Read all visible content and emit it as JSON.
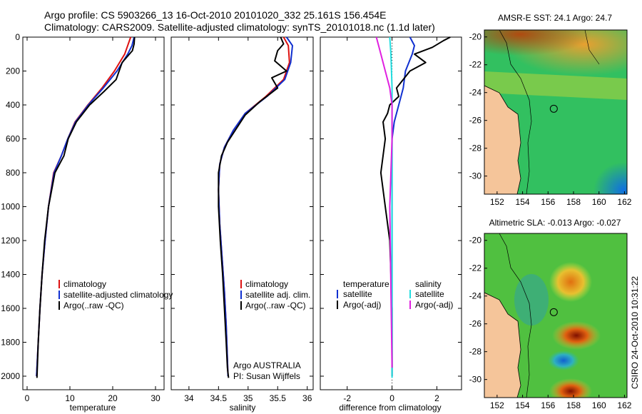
{
  "header": {
    "line1": "Argo profile: CS 5903266_13 16-Oct-2010 20101020_332 25.161S 156.454E",
    "line2": "Climatology: CARS2009. Satellite-adjusted climatology: synTS_20101018.nc (1.1d later)"
  },
  "side_label": "CSIRO 24-Oct-2010 10:31:22",
  "colors": {
    "clim": "#dd1111",
    "sat": "#1030d0",
    "argo": "#000000",
    "sal_sat": "#22dde0",
    "sal_argo": "#e020e0"
  },
  "chart_data": [
    {
      "type": "line",
      "id": "temperature",
      "xlabel": "temperature",
      "ylim": [
        0,
        2080
      ],
      "xlim": [
        -1,
        32
      ],
      "xticks": [
        0,
        10,
        20,
        30
      ],
      "yticks": [
        0,
        200,
        400,
        600,
        800,
        1000,
        1200,
        1400,
        1600,
        1800,
        2000
      ],
      "legend": [
        "climatology",
        "satellite-adjusted climatology",
        "Argo(..raw -QC)"
      ],
      "series": [
        {
          "name": "climatology",
          "color": "clim",
          "x": [
            24.2,
            23.5,
            22.8,
            20.4,
            17.5,
            14.2,
            11.2,
            9.5,
            8.0,
            6.2,
            5.0,
            4.2,
            3.5,
            3.0,
            2.6,
            2.2
          ],
          "y": [
            0,
            50,
            100,
            200,
            300,
            400,
            500,
            600,
            700,
            800,
            1000,
            1200,
            1400,
            1600,
            1800,
            2000
          ]
        },
        {
          "name": "satellite",
          "color": "sat",
          "x": [
            25.0,
            24.5,
            23.5,
            21.0,
            17.8,
            14.3,
            11.3,
            9.5,
            8.0,
            6.3,
            5.0,
            4.2,
            3.5,
            3.0,
            2.6,
            2.2
          ],
          "y": [
            0,
            50,
            100,
            200,
            300,
            400,
            500,
            600,
            700,
            800,
            1000,
            1200,
            1400,
            1600,
            1800,
            2000
          ]
        },
        {
          "name": "argo",
          "color": "argo",
          "x": [
            25.1,
            25.0,
            24.6,
            22.2,
            20.8,
            18.0,
            14.6,
            11.5,
            9.6,
            8.6,
            6.5,
            5.0,
            4.1,
            3.5,
            3.0,
            2.6,
            2.3
          ],
          "y": [
            0,
            40,
            80,
            150,
            250,
            320,
            400,
            500,
            600,
            700,
            800,
            1000,
            1200,
            1400,
            1600,
            1800,
            2010
          ]
        }
      ]
    },
    {
      "type": "line",
      "id": "salinity",
      "xlabel": "salinity",
      "ylim": [
        0,
        2080
      ],
      "xlim": [
        33.7,
        36.1
      ],
      "xticks": [
        34,
        34.5,
        35,
        35.5,
        36
      ],
      "legend": [
        "climatology",
        "satellite adj. clim.",
        "Argo(..raw -QC)"
      ],
      "series": [
        {
          "name": "climatology",
          "color": "clim",
          "x": [
            35.6,
            35.68,
            35.7,
            35.6,
            35.3,
            34.95,
            34.75,
            34.6,
            34.52,
            34.5,
            34.52,
            34.56,
            34.6,
            34.63,
            34.65,
            34.66
          ],
          "y": [
            0,
            50,
            150,
            250,
            350,
            450,
            550,
            650,
            750,
            900,
            1100,
            1300,
            1500,
            1700,
            1900,
            2000
          ]
        },
        {
          "name": "satellite",
          "color": "sat",
          "x": [
            35.65,
            35.75,
            35.72,
            35.62,
            35.32,
            34.95,
            34.75,
            34.6,
            34.52,
            34.5,
            34.52,
            34.56,
            34.6,
            34.63,
            34.65,
            34.66
          ],
          "y": [
            0,
            50,
            150,
            250,
            350,
            450,
            550,
            650,
            750,
            900,
            1100,
            1300,
            1500,
            1700,
            1900,
            2000
          ]
        },
        {
          "name": "argo",
          "color": "argo",
          "x": [
            35.55,
            35.6,
            35.5,
            35.45,
            35.65,
            35.4,
            35.5,
            35.2,
            34.95,
            34.8,
            34.65,
            34.55,
            34.5,
            34.5,
            34.53,
            34.57,
            34.6,
            34.63,
            34.65,
            34.67
          ],
          "y": [
            0,
            40,
            80,
            140,
            200,
            240,
            300,
            380,
            460,
            540,
            620,
            700,
            800,
            1000,
            1200,
            1400,
            1600,
            1800,
            1950,
            2010
          ]
        }
      ],
      "annotation": {
        "line1": "Argo AUSTRALIA",
        "line2": "PI: Susan Wijffels"
      }
    },
    {
      "type": "line",
      "id": "difference",
      "xlabel": "difference from climatology",
      "ylim": [
        0,
        2080
      ],
      "xlim": [
        -3.2,
        3.1
      ],
      "xticks": [
        -2,
        0,
        2
      ],
      "legend_temp_header": "temperature",
      "legend_sal_header": "salinity",
      "legend": [
        "satellite",
        "Argo(-adj)",
        "satellite",
        "Argo(-adj)"
      ],
      "series": [
        {
          "name": "temperature satellite",
          "color": "sat",
          "x": [
            0.8,
            1.0,
            0.9,
            0.6,
            0.5,
            0.3,
            0.1,
            0.0,
            0.0,
            0.0,
            0.0,
            0.0
          ],
          "y": [
            0,
            50,
            100,
            200,
            300,
            400,
            500,
            600,
            800,
            1200,
            1600,
            2000
          ]
        },
        {
          "name": "temperature argo",
          "color": "argo",
          "x": [
            2.6,
            2.3,
            1.8,
            1.0,
            1.5,
            0.8,
            0.5,
            0.2,
            0.3,
            -0.1,
            -0.2,
            -0.4,
            -0.3,
            -0.5,
            -0.3,
            -0.1,
            0.0,
            0.0
          ],
          "y": [
            0,
            20,
            60,
            100,
            150,
            200,
            250,
            300,
            350,
            400,
            450,
            500,
            600,
            800,
            1000,
            1200,
            1600,
            2000
          ]
        },
        {
          "name": "salinity satellite",
          "color": "sal_sat",
          "x": [
            -0.1,
            -0.05,
            0.0,
            0.0,
            0.0,
            0.0,
            0.0
          ],
          "y": [
            0,
            100,
            300,
            600,
            1000,
            1500,
            2010
          ]
        },
        {
          "name": "salinity argo",
          "color": "sal_argo",
          "x": [
            -0.7,
            -0.5,
            -0.3,
            -0.1,
            0.0,
            0.0,
            -0.1,
            0.0
          ],
          "y": [
            0,
            100,
            200,
            300,
            400,
            600,
            1000,
            1950
          ]
        }
      ]
    }
  ],
  "maps": [
    {
      "title": "AMSR-E SST: 24.1 Argo: 24.7",
      "kind": "sst",
      "xticks": [
        152,
        154,
        156,
        158,
        160,
        162
      ],
      "yticks": [
        -20,
        -22,
        -24,
        -26,
        -28,
        -30
      ],
      "lon": [
        151,
        162.2
      ],
      "lat": [
        -19.5,
        -31.3
      ],
      "argo_pos": [
        156.45,
        -25.16
      ]
    },
    {
      "title": "Altimetric SLA: -0.013 Argo: -0.027",
      "kind": "sla",
      "xticks": [
        152,
        154,
        156,
        158,
        160,
        162
      ],
      "yticks": [
        -20,
        -22,
        -24,
        -26,
        -28,
        -30
      ],
      "lon": [
        151,
        162.2
      ],
      "lat": [
        -19.5,
        -31.3
      ],
      "argo_pos": [
        156.45,
        -25.16
      ]
    }
  ]
}
